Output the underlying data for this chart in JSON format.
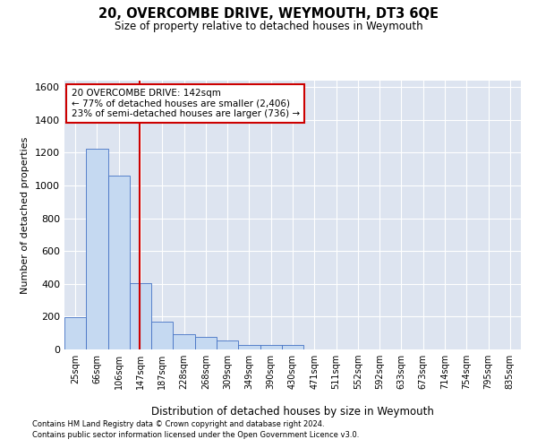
{
  "title": "20, OVERCOMBE DRIVE, WEYMOUTH, DT3 6QE",
  "subtitle": "Size of property relative to detached houses in Weymouth",
  "xlabel": "Distribution of detached houses by size in Weymouth",
  "ylabel": "Number of detached properties",
  "footnote1": "Contains HM Land Registry data © Crown copyright and database right 2024.",
  "footnote2": "Contains public sector information licensed under the Open Government Licence v3.0.",
  "bin_labels": [
    "25sqm",
    "66sqm",
    "106sqm",
    "147sqm",
    "187sqm",
    "228sqm",
    "268sqm",
    "309sqm",
    "349sqm",
    "390sqm",
    "430sqm",
    "471sqm",
    "511sqm",
    "552sqm",
    "592sqm",
    "633sqm",
    "673sqm",
    "714sqm",
    "754sqm",
    "795sqm",
    "835sqm"
  ],
  "bar_values": [
    198,
    1222,
    1058,
    402,
    168,
    95,
    75,
    55,
    30,
    25,
    25,
    0,
    0,
    0,
    0,
    0,
    0,
    0,
    0,
    0,
    0
  ],
  "bar_color": "#c5d9f1",
  "bar_edge_color": "#4472c4",
  "ylim": [
    0,
    1640
  ],
  "yticks": [
    0,
    200,
    400,
    600,
    800,
    1000,
    1200,
    1400,
    1600
  ],
  "property_line_x": 2.97,
  "property_line_color": "#cc0000",
  "annotation_text": "20 OVERCOMBE DRIVE: 142sqm\n← 77% of detached houses are smaller (2,406)\n23% of semi-detached houses are larger (736) →",
  "annotation_box_color": "#ffffff",
  "annotation_box_edge": "#cc0000",
  "background_color": "#dde4f0"
}
